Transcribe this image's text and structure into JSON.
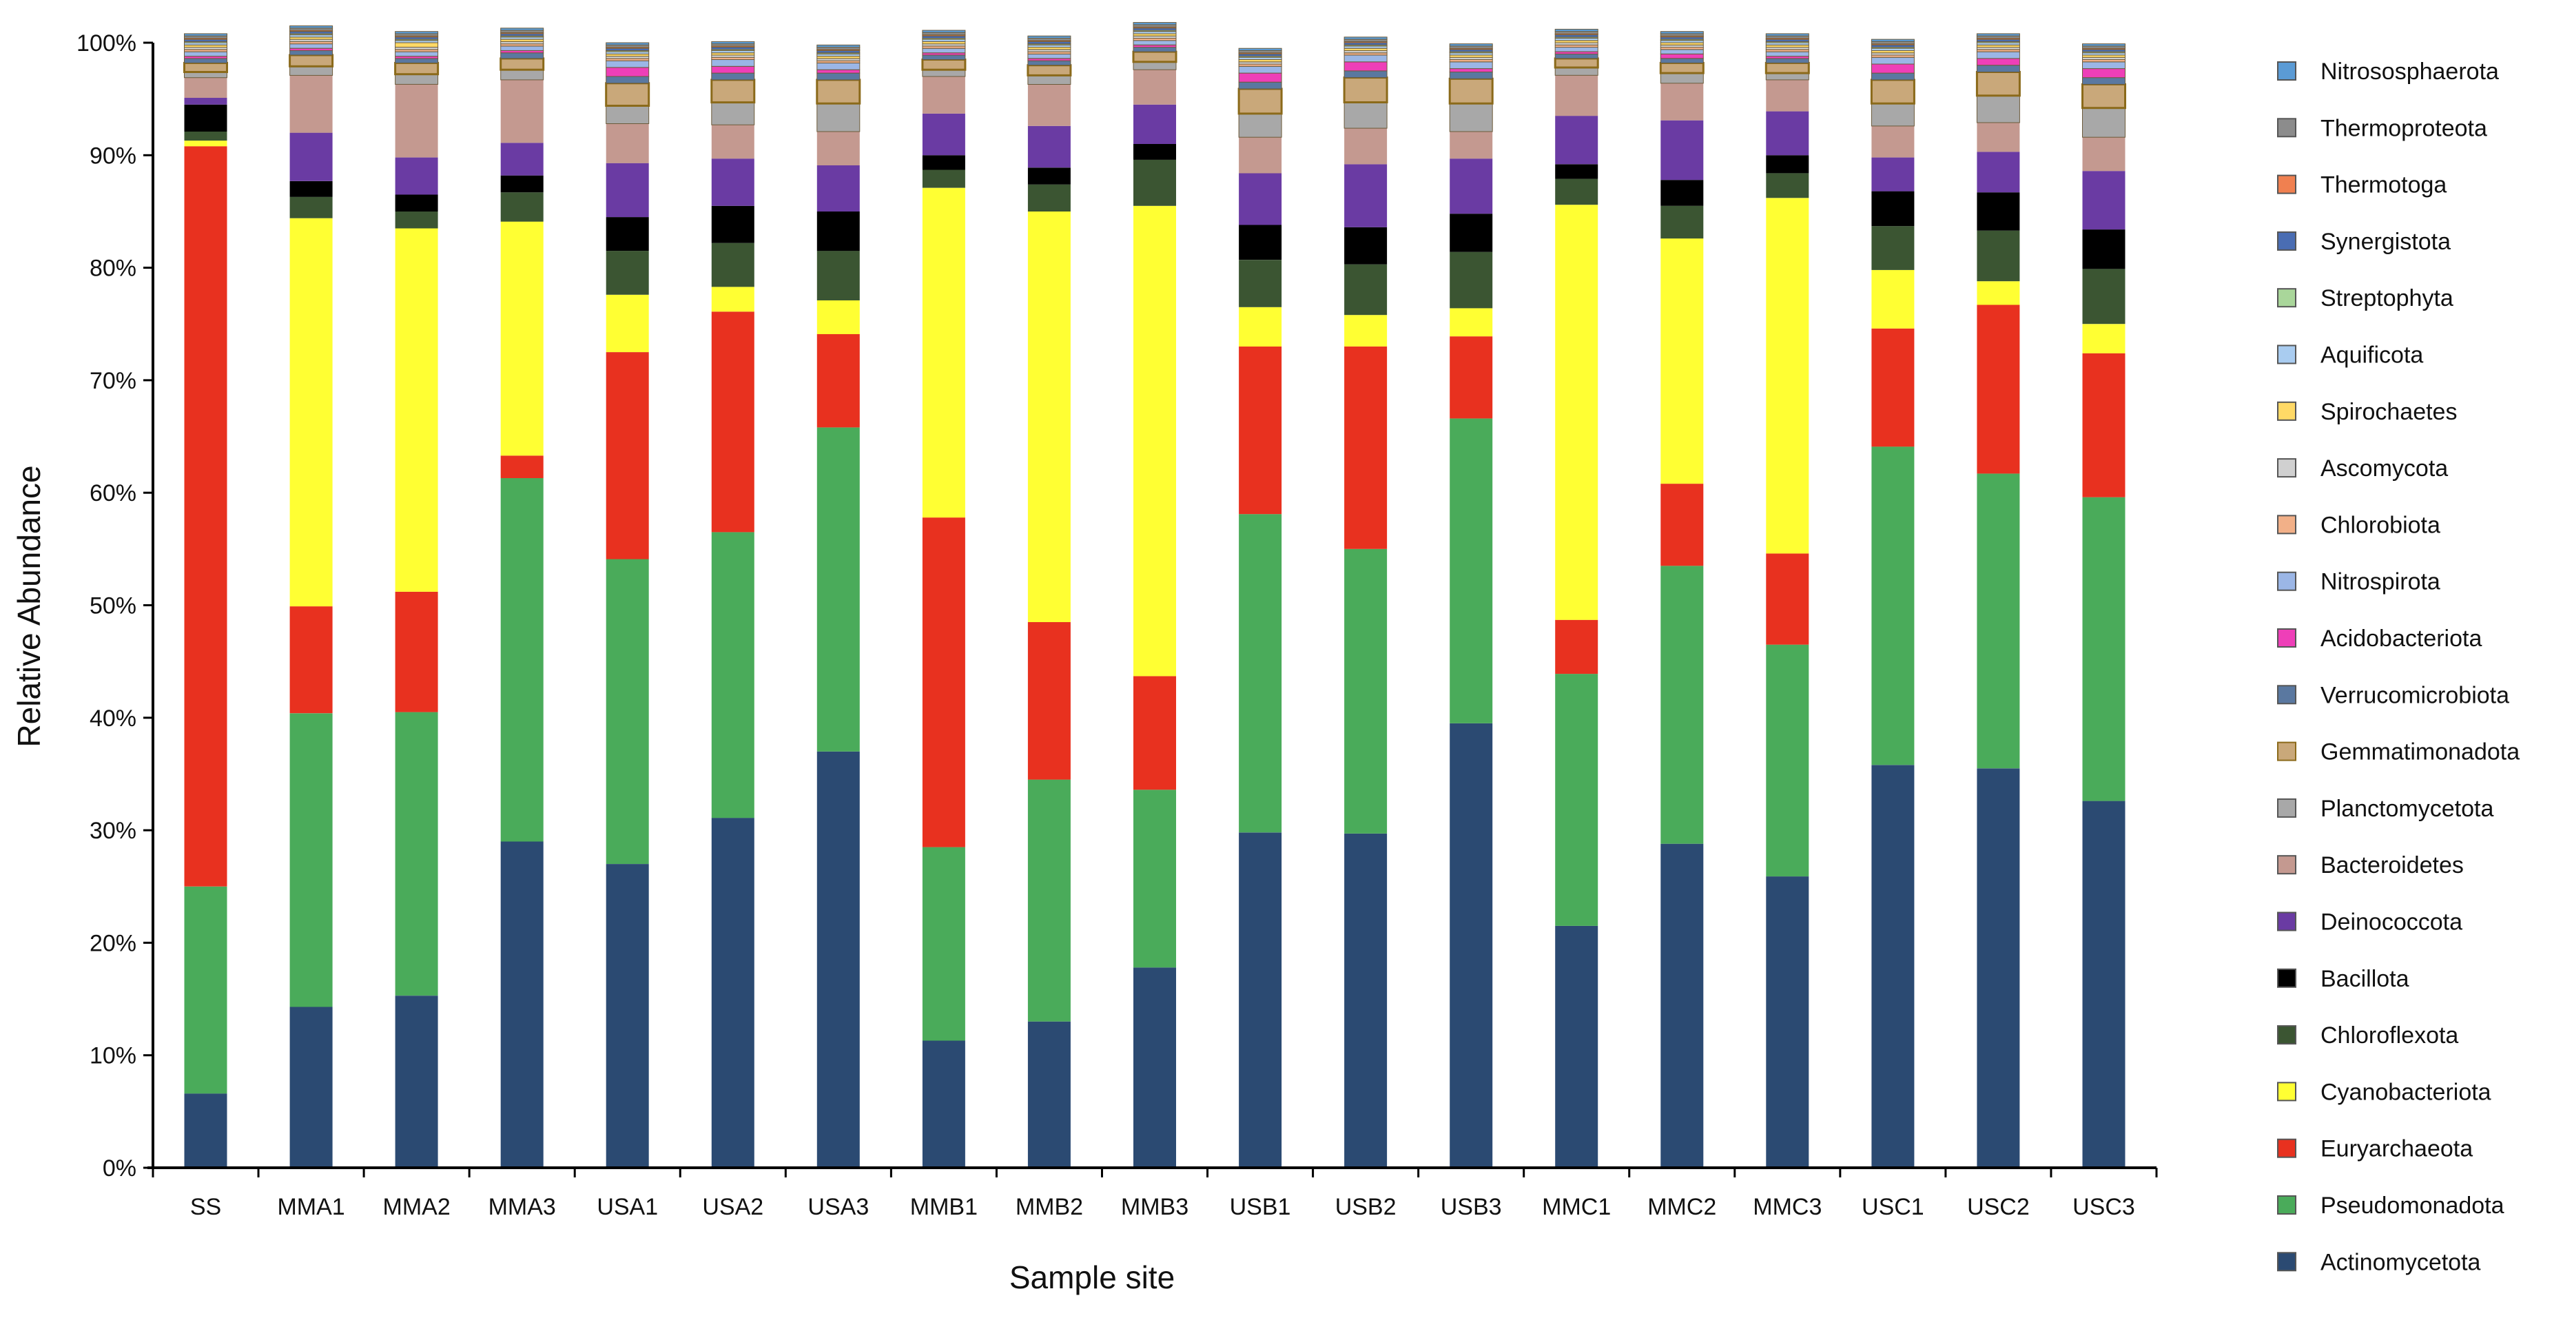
{
  "chart_data": {
    "type": "bar",
    "stacked": true,
    "title": "",
    "xlabel": "Sample site",
    "ylabel": "Relative Abundance",
    "ylim": [
      0,
      100
    ],
    "y_ticks": [
      "0%",
      "10%",
      "20%",
      "30%",
      "40%",
      "50%",
      "60%",
      "70%",
      "80%",
      "90%",
      "100%"
    ],
    "categories": [
      "SS",
      "MMA1",
      "MMA2",
      "MMA3",
      "USA1",
      "USA2",
      "USA3",
      "MMB1",
      "MMB2",
      "MMB3",
      "USB1",
      "USB2",
      "USB3",
      "MMC1",
      "MMC2",
      "MMC3",
      "USC1",
      "USC2",
      "USC3"
    ],
    "legend_position": "right",
    "series": [
      {
        "name": "Actinomycetota",
        "color": "#2b4a72",
        "values": [
          6.6,
          14.3,
          15.3,
          29.0,
          27.0,
          31.1,
          37.0,
          11.3,
          13.0,
          17.8,
          29.8,
          29.7,
          39.5,
          21.5,
          28.8,
          25.9,
          35.8,
          35.5,
          32.6
        ]
      },
      {
        "name": "Pseudomonadota",
        "color": "#4aab5a",
        "values": [
          18.4,
          26.1,
          25.2,
          32.3,
          27.1,
          25.4,
          28.8,
          17.2,
          21.5,
          15.8,
          28.3,
          25.3,
          27.1,
          22.4,
          24.7,
          20.6,
          28.3,
          26.2,
          27.0
        ]
      },
      {
        "name": "Euryarchaeota",
        "color": "#e8311f",
        "values": [
          65.8,
          9.5,
          10.7,
          2.0,
          18.4,
          19.6,
          8.3,
          29.3,
          14.0,
          10.1,
          14.9,
          18.0,
          7.3,
          4.8,
          7.3,
          8.1,
          10.5,
          15.0,
          12.8
        ]
      },
      {
        "name": "Cyanobacteriota",
        "color": "#ffff33",
        "values": [
          0.5,
          34.5,
          32.3,
          20.8,
          5.1,
          2.2,
          3.0,
          29.3,
          36.5,
          41.8,
          3.5,
          2.8,
          2.5,
          36.9,
          21.8,
          31.6,
          5.2,
          2.1,
          2.6
        ]
      },
      {
        "name": "Chloroflexota",
        "color": "#3b5532",
        "values": [
          0.8,
          1.9,
          1.5,
          2.6,
          3.9,
          3.9,
          4.4,
          1.6,
          2.4,
          4.1,
          4.2,
          4.5,
          5.0,
          2.3,
          2.9,
          2.2,
          3.9,
          4.5,
          4.9
        ]
      },
      {
        "name": "Bacillota",
        "color": "#000000",
        "values": [
          2.4,
          1.4,
          1.5,
          1.5,
          3.0,
          3.3,
          3.5,
          1.3,
          1.5,
          1.4,
          3.1,
          3.3,
          3.4,
          1.3,
          2.3,
          1.6,
          3.1,
          3.4,
          3.5
        ]
      },
      {
        "name": "Deinococcota",
        "color": "#6a3ba3",
        "values": [
          0.6,
          4.3,
          3.3,
          2.9,
          4.8,
          4.2,
          4.1,
          3.7,
          3.7,
          3.5,
          4.6,
          5.6,
          4.9,
          4.3,
          5.3,
          3.9,
          3.0,
          3.6,
          5.2
        ]
      },
      {
        "name": "Bacteroidetes",
        "color": "#c49990",
        "values": [
          1.8,
          5.1,
          6.5,
          5.6,
          3.5,
          3.0,
          3.0,
          3.3,
          3.7,
          3.1,
          3.2,
          3.2,
          2.4,
          3.6,
          3.3,
          2.8,
          2.8,
          2.6,
          3.0
        ]
      },
      {
        "name": "Planctomycetota",
        "color": "#a8a8a8",
        "values": [
          0.5,
          0.8,
          0.9,
          0.9,
          1.6,
          2.0,
          2.5,
          0.6,
          0.8,
          0.7,
          2.1,
          2.3,
          2.5,
          0.7,
          0.9,
          0.6,
          2.0,
          2.4,
          2.6
        ]
      },
      {
        "name": "Gemmatimonadota",
        "color": "#c9a87a",
        "values": [
          0.8,
          1.0,
          1.0,
          1.0,
          2.0,
          2.0,
          2.1,
          0.9,
          0.9,
          0.9,
          2.2,
          2.2,
          2.2,
          0.8,
          0.9,
          0.9,
          2.1,
          2.1,
          2.1
        ]
      },
      {
        "name": "Verrucomicrobiota",
        "color": "#5a78a0",
        "values": [
          0.4,
          0.4,
          0.4,
          0.5,
          0.6,
          0.6,
          0.6,
          0.4,
          0.4,
          0.4,
          0.6,
          0.6,
          0.6,
          0.4,
          0.4,
          0.4,
          0.6,
          0.6,
          0.6
        ]
      },
      {
        "name": "Acidobacteriota",
        "color": "#ee3fb8",
        "values": [
          0.2,
          0.2,
          0.2,
          0.2,
          0.8,
          0.6,
          0.3,
          0.2,
          0.2,
          0.2,
          0.8,
          0.8,
          0.3,
          0.2,
          0.4,
          0.2,
          0.8,
          0.6,
          0.8
        ]
      },
      {
        "name": "Nitrospirota",
        "color": "#9bb6e6",
        "values": [
          0.4,
          0.4,
          0.4,
          0.4,
          0.6,
          0.6,
          0.6,
          0.4,
          0.4,
          0.4,
          0.6,
          0.6,
          0.6,
          0.4,
          0.4,
          0.4,
          0.6,
          0.6,
          0.6
        ]
      },
      {
        "name": "Chlorobiota",
        "color": "#f2b088",
        "values": [
          0.2,
          0.2,
          0.2,
          0.2,
          0.2,
          0.2,
          0.2,
          0.2,
          0.2,
          0.2,
          0.2,
          0.2,
          0.2,
          0.2,
          0.2,
          0.2,
          0.2,
          0.2,
          0.2
        ]
      },
      {
        "name": "Ascomycota",
        "color": "#d0d0d0",
        "values": [
          0.2,
          0.2,
          0.2,
          0.2,
          0.2,
          0.2,
          0.2,
          0.2,
          0.2,
          0.2,
          0.2,
          0.2,
          0.2,
          0.2,
          0.2,
          0.2,
          0.2,
          0.2,
          0.2
        ]
      },
      {
        "name": "Spirochaetes",
        "color": "#ffd966",
        "values": [
          0.2,
          0.2,
          0.4,
          0.2,
          0.2,
          0.2,
          0.2,
          0.2,
          0.2,
          0.2,
          0.2,
          0.2,
          0.2,
          0.2,
          0.2,
          0.2,
          0.2,
          0.2,
          0.2
        ]
      },
      {
        "name": "Aquificota",
        "color": "#a9ccf0",
        "values": [
          0.2,
          0.2,
          0.2,
          0.2,
          0.2,
          0.2,
          0.2,
          0.2,
          0.2,
          0.2,
          0.2,
          0.2,
          0.2,
          0.2,
          0.2,
          0.2,
          0.2,
          0.2,
          0.2
        ]
      },
      {
        "name": "Streptophyta",
        "color": "#a9d69a",
        "values": [
          0.1,
          0.1,
          0.1,
          0.1,
          0.1,
          0.1,
          0.1,
          0.1,
          0.1,
          0.1,
          0.1,
          0.1,
          0.1,
          0.1,
          0.1,
          0.1,
          0.1,
          0.1,
          0.1
        ]
      },
      {
        "name": "Synergistota",
        "color": "#4a6db3",
        "values": [
          0.2,
          0.2,
          0.2,
          0.2,
          0.2,
          0.2,
          0.2,
          0.2,
          0.2,
          0.2,
          0.2,
          0.2,
          0.2,
          0.2,
          0.2,
          0.2,
          0.2,
          0.2,
          0.2
        ]
      },
      {
        "name": "Thermotoga",
        "color": "#f08050",
        "values": [
          0.1,
          0.1,
          0.1,
          0.1,
          0.1,
          0.1,
          0.1,
          0.1,
          0.1,
          0.1,
          0.1,
          0.1,
          0.1,
          0.1,
          0.1,
          0.1,
          0.1,
          0.1,
          0.1
        ]
      },
      {
        "name": "Thermoproteota",
        "color": "#8c8c8c",
        "values": [
          0.2,
          0.2,
          0.2,
          0.2,
          0.2,
          0.2,
          0.2,
          0.2,
          0.2,
          0.2,
          0.2,
          0.2,
          0.2,
          0.2,
          0.2,
          0.2,
          0.2,
          0.2,
          0.2
        ]
      },
      {
        "name": "Nitrososphaerota",
        "color": "#5b9bd5",
        "values": [
          0.2,
          0.2,
          0.2,
          0.2,
          0.2,
          0.2,
          0.2,
          0.2,
          0.2,
          0.2,
          0.2,
          0.2,
          0.2,
          0.2,
          0.2,
          0.2,
          0.2,
          0.2,
          0.2
        ]
      }
    ]
  }
}
